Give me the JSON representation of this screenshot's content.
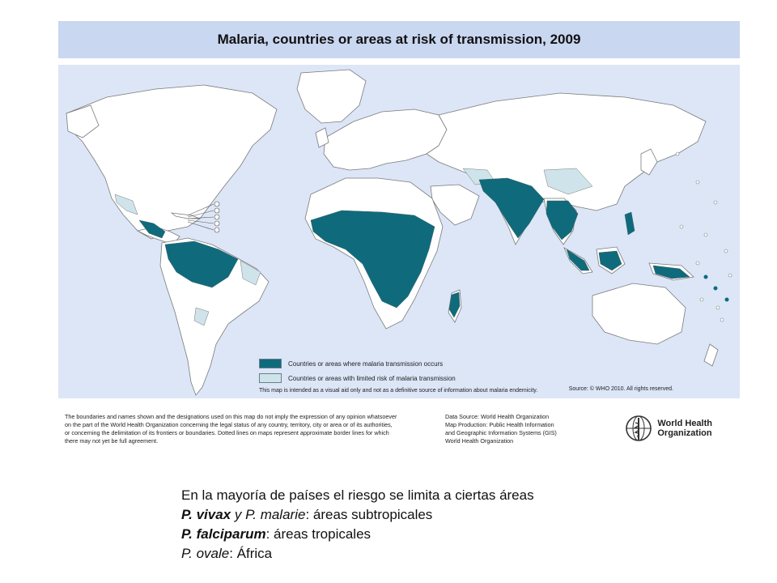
{
  "map": {
    "title": "Malaria, countries or areas at risk of transmission, 2009",
    "legend": [
      {
        "label": "Countries or areas where malaria transmission occurs",
        "color": "#0f6b7c"
      },
      {
        "label": "Countries or areas with limited risk of malaria transmission",
        "color": "#cfe3ea"
      }
    ],
    "legend_note": "This map is intended as a visual aid only and not as a definitive source of information about malaria endemicity.",
    "source": "Source: © WHO 2010. All rights reserved.",
    "colors": {
      "ocean": "#dce6f7",
      "land": "#ffffff",
      "border": "#7a7a7a",
      "risk": "#0f6b7c",
      "limited": "#cfe3ea"
    }
  },
  "footer": {
    "disclaimer": [
      "The boundaries and names shown and the designations used on this map do not imply the expression of any opinion whatsoever",
      "on the part of the World Health Organization concerning the legal status of any country, territory, city or area or of its authorities,",
      "or concerning the delimitation of its frontiers or boundaries. Dotted lines on maps represent approximate border lines for which",
      "there may not yet be full agreement."
    ],
    "credits": [
      "Data Source: World Health Organization",
      "Map Production: Public Health Information",
      "and Geographic Information Systems (GIS)",
      "World Health Organization"
    ],
    "org_name_line1": "World Health",
    "org_name_line2": "Organization"
  },
  "caption": {
    "line1": "En la mayoría de países el riesgo se limita a ciertas áreas",
    "line2_a": "P. vivax",
    "line2_b": " y ",
    "line2_c": "P. malarie",
    "line2_d": ": áreas subtropicales",
    "line3_a": "P. falciparum",
    "line3_b": ": áreas tropicales",
    "line4_a": "P. ovale",
    "line4_b": ": África"
  }
}
